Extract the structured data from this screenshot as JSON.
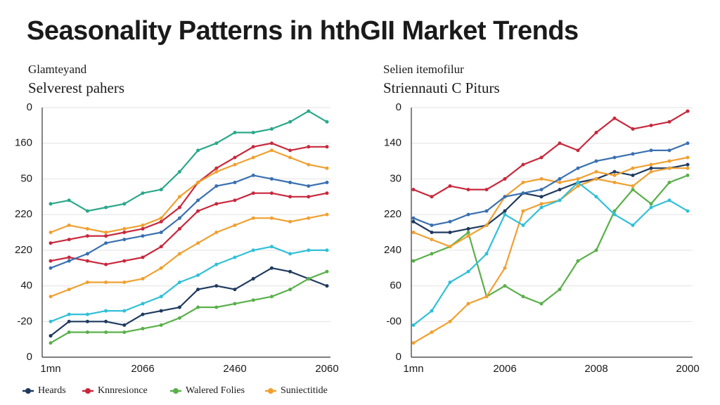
{
  "title": "Seasonality Patterns in hthGII Market Trends",
  "chart_data": [
    {
      "type": "line",
      "subtitle": "Glamteyand",
      "title": "Selverest pahers",
      "categories": [
        "1mn",
        null,
        null,
        null,
        null,
        "2066",
        null,
        null,
        null,
        null,
        "2460",
        null,
        null,
        null,
        null,
        "2060"
      ],
      "ylim": [
        0,
        7
      ],
      "yticks": [
        {
          "value": 0,
          "label": "0"
        },
        {
          "value": 1,
          "label": "-20"
        },
        {
          "value": 2,
          "label": "40"
        },
        {
          "value": 3,
          "label": "220"
        },
        {
          "value": 4,
          "label": "220"
        },
        {
          "value": 5,
          "label": "50"
        },
        {
          "value": 6,
          "label": "160"
        },
        {
          "value": 7,
          "label": "0"
        }
      ],
      "grid": true,
      "legend": "bottom",
      "series": [
        {
          "name": "Heards",
          "color": "#1f3a5f",
          "values": [
            0.6,
            1.0,
            1.0,
            1.0,
            0.9,
            1.2,
            1.3,
            1.4,
            1.9,
            2.0,
            1.9,
            2.2,
            2.5,
            2.4,
            2.2,
            2.0
          ]
        },
        {
          "name": "Knnresionce",
          "color": "#c8283c",
          "values": [
            3.2,
            3.3,
            3.4,
            3.4,
            3.5,
            3.6,
            3.8,
            4.2,
            4.9,
            5.3,
            5.6,
            5.9,
            6.0,
            5.8,
            5.9,
            5.9
          ]
        },
        {
          "name": "Walered Folies",
          "color": "#5ab04a",
          "values": [
            0.4,
            0.7,
            0.7,
            0.7,
            0.7,
            0.8,
            0.9,
            1.1,
            1.4,
            1.4,
            1.5,
            1.6,
            1.7,
            1.9,
            2.2,
            2.4
          ]
        },
        {
          "name": "Suniectitide",
          "color": "#f0a030",
          "values": [
            1.7,
            1.9,
            2.1,
            2.1,
            2.1,
            2.2,
            2.5,
            2.9,
            3.2,
            3.5,
            3.7,
            3.9,
            3.9,
            3.8,
            3.9,
            4.0
          ]
        },
        {
          "color": "#c8283c",
          "values": [
            2.7,
            2.8,
            2.7,
            2.6,
            2.7,
            2.8,
            3.1,
            3.6,
            4.1,
            4.3,
            4.4,
            4.6,
            4.6,
            4.5,
            4.5,
            4.6
          ]
        },
        {
          "color": "#f0a030",
          "values": [
            3.5,
            3.7,
            3.6,
            3.5,
            3.6,
            3.7,
            3.9,
            4.5,
            4.9,
            5.2,
            5.4,
            5.6,
            5.8,
            5.6,
            5.4,
            5.3
          ]
        },
        {
          "color": "#2aa88a",
          "values": [
            4.3,
            4.4,
            4.1,
            4.2,
            4.3,
            4.6,
            4.7,
            5.2,
            5.8,
            6.0,
            6.3,
            6.3,
            6.4,
            6.6,
            6.9,
            6.6
          ]
        },
        {
          "color": "#3a70b0",
          "values": [
            2.5,
            2.7,
            2.9,
            3.2,
            3.3,
            3.4,
            3.5,
            3.9,
            4.4,
            4.8,
            4.9,
            5.1,
            5.0,
            4.9,
            4.8,
            4.9
          ]
        },
        {
          "color": "#30c0d8",
          "values": [
            1.0,
            1.2,
            1.2,
            1.3,
            1.3,
            1.5,
            1.7,
            2.1,
            2.3,
            2.6,
            2.8,
            3.0,
            3.1,
            2.9,
            3.0,
            3.0
          ]
        }
      ]
    },
    {
      "type": "line",
      "subtitle": "Selien itemofilur",
      "title": "Striennauti C Piturs",
      "categories": [
        "1mn",
        null,
        null,
        null,
        null,
        "2006",
        null,
        null,
        null,
        null,
        "2008",
        null,
        null,
        null,
        null,
        "2000"
      ],
      "ylim": [
        0,
        7
      ],
      "yticks": [
        {
          "value": 0,
          "label": "0"
        },
        {
          "value": 1,
          "label": "-00"
        },
        {
          "value": 2,
          "label": "60"
        },
        {
          "value": 3,
          "label": "240"
        },
        {
          "value": 4,
          "label": "220"
        },
        {
          "value": 5,
          "label": "30"
        },
        {
          "value": 6,
          "label": "140"
        },
        {
          "value": 7,
          "label": "0"
        }
      ],
      "grid": true,
      "series": [
        {
          "color": "#1f3a5f",
          "values": [
            3.8,
            3.5,
            3.5,
            3.6,
            3.7,
            4.1,
            4.6,
            4.5,
            4.7,
            4.9,
            5.0,
            5.2,
            5.1,
            5.3,
            5.3,
            5.4
          ]
        },
        {
          "color": "#c8283c",
          "values": [
            4.7,
            4.5,
            4.8,
            4.7,
            4.7,
            5.0,
            5.4,
            5.6,
            6.0,
            5.8,
            6.3,
            6.7,
            6.4,
            6.5,
            6.6,
            6.9
          ]
        },
        {
          "color": "#5ab04a",
          "values": [
            2.7,
            2.9,
            3.1,
            3.5,
            1.7,
            2.0,
            1.7,
            1.5,
            1.9,
            2.7,
            3.0,
            4.1,
            4.7,
            4.3,
            4.9,
            5.1
          ]
        },
        {
          "color": "#f0a030",
          "values": [
            3.5,
            3.3,
            3.1,
            3.4,
            3.7,
            4.5,
            4.9,
            5.0,
            4.9,
            5.0,
            5.2,
            5.1,
            5.3,
            5.4,
            5.5,
            5.6
          ]
        },
        {
          "color": "#f0a030",
          "values": [
            0.4,
            0.7,
            1.0,
            1.5,
            1.7,
            2.5,
            4.1,
            4.3,
            4.4,
            4.8,
            5.0,
            4.9,
            4.8,
            5.2,
            5.3,
            5.3
          ]
        },
        {
          "color": "#3a70b0",
          "values": [
            3.9,
            3.7,
            3.8,
            4.0,
            4.1,
            4.5,
            4.6,
            4.7,
            5.0,
            5.3,
            5.5,
            5.6,
            5.7,
            5.8,
            5.8,
            6.0
          ]
        },
        {
          "color": "#30c0d8",
          "values": [
            0.9,
            1.3,
            2.1,
            2.4,
            2.9,
            4.0,
            3.7,
            4.2,
            4.4,
            4.9,
            4.5,
            4.0,
            3.7,
            4.2,
            4.4,
            4.1
          ]
        }
      ]
    }
  ]
}
